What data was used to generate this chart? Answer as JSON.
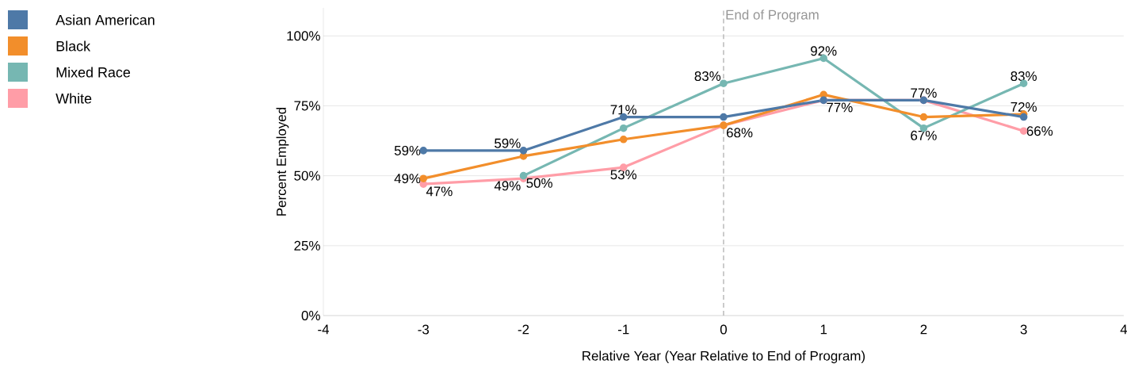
{
  "chart_data": {
    "type": "line",
    "xlabel": "Relative Year (Year Relative to End of Program)",
    "ylabel": "Percent Employed",
    "x": [
      -3,
      -2,
      -1,
      0,
      1,
      2,
      3
    ],
    "series": [
      {
        "name": "Asian American",
        "color": "#4e79a7",
        "values": [
          59,
          59,
          71,
          71,
          77,
          77,
          71
        ],
        "value_labels": [
          "59%",
          "59%",
          "71%",
          null,
          null,
          null,
          null
        ]
      },
      {
        "name": "Black",
        "color": "#f28e2b",
        "values": [
          49,
          57,
          63,
          68,
          79,
          71,
          72
        ],
        "value_labels": [
          "49%",
          null,
          null,
          "68%",
          null,
          null,
          "72%"
        ]
      },
      {
        "name": "Mixed Race",
        "color": "#76b7b2",
        "values": [
          null,
          50,
          67,
          83,
          92,
          67,
          83
        ],
        "value_labels": [
          null,
          "50%",
          null,
          "83%",
          "92%",
          "67%",
          "83%"
        ]
      },
      {
        "name": "White",
        "color": "#ff9da7",
        "values": [
          47,
          49,
          53,
          68,
          77,
          77,
          66
        ],
        "value_labels": [
          "47%",
          "49%",
          "53%",
          null,
          "77%",
          "77%",
          "66%"
        ]
      }
    ],
    "xlim": [
      -4,
      4
    ],
    "xticks": [
      -4,
      -3,
      -2,
      -1,
      0,
      1,
      2,
      3,
      4
    ],
    "ylim": [
      0,
      110
    ],
    "yticks": [
      {
        "value": 0,
        "label": "0%"
      },
      {
        "value": 25,
        "label": "25%"
      },
      {
        "value": 50,
        "label": "50%"
      },
      {
        "value": 75,
        "label": "75%"
      },
      {
        "value": 100,
        "label": "100%"
      }
    ],
    "ref_lines": [
      {
        "axis": "x",
        "value": 0,
        "label": "End of Program",
        "color": "#bfbfbf",
        "line_style": "dashed"
      }
    ],
    "grid": "y",
    "legend": "top left",
    "marker": "circle",
    "line_style": "solid"
  }
}
